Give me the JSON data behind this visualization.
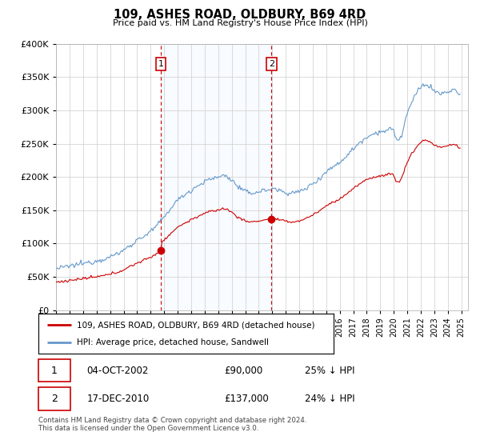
{
  "title": "109, ASHES ROAD, OLDBURY, B69 4RD",
  "subtitle": "Price paid vs. HM Land Registry's House Price Index (HPI)",
  "legend_line1": "109, ASHES ROAD, OLDBURY, B69 4RD (detached house)",
  "legend_line2": "HPI: Average price, detached house, Sandwell",
  "transaction1_date": "04-OCT-2002",
  "transaction1_price": "£90,000",
  "transaction1_hpi": "25% ↓ HPI",
  "transaction2_date": "17-DEC-2010",
  "transaction2_price": "£137,000",
  "transaction2_hpi": "24% ↓ HPI",
  "footer": "Contains HM Land Registry data © Crown copyright and database right 2024.\nThis data is licensed under the Open Government Licence v3.0.",
  "hpi_color": "#6699cc",
  "price_color": "#cc0000",
  "vline_color": "#cc0000",
  "marker_box_color": "#cc0000",
  "transaction1_x": 2002.75,
  "transaction2_x": 2010.95,
  "transaction1_y": 90000,
  "transaction2_y": 137000,
  "ylim": [
    0,
    400000
  ],
  "xlim_left": 1995,
  "xlim_right": 2025.5
}
